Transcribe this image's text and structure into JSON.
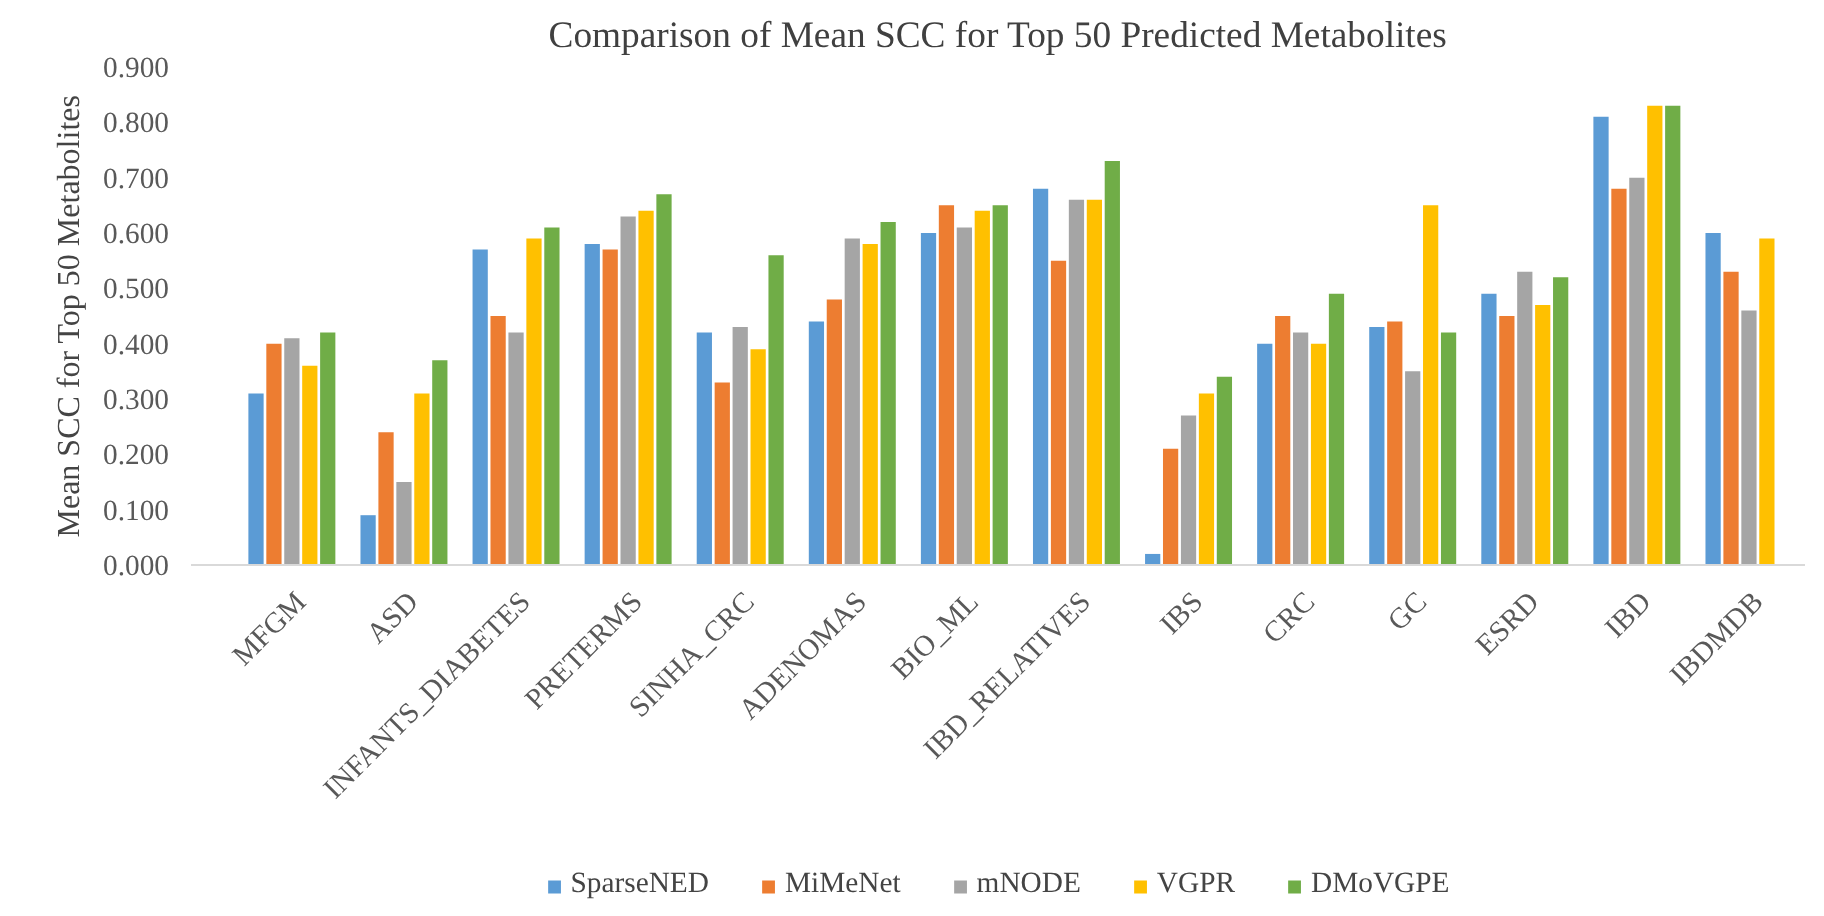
{
  "chart_data": {
    "type": "bar",
    "title": "Comparison of Mean SCC for Top 50 Predicted Metabolites",
    "ylabel": "Mean SCC for Top 50 Metabolites",
    "categories": [
      "MFGM",
      "ASD",
      "INFANTS_DIABETES",
      "PRETERMS",
      "SINHA_CRC",
      "ADENOMAS",
      "BIO_ML",
      "IBD_RELATIVES",
      "IBS",
      "CRC",
      "GC",
      "ESRD",
      "IBD",
      "IBDMDB"
    ],
    "series": [
      {
        "name": "SparseNED",
        "color": "#5b9bd5",
        "values": [
          0.31,
          0.09,
          0.57,
          0.58,
          0.42,
          0.44,
          0.6,
          0.68,
          0.02,
          0.4,
          0.43,
          0.49,
          0.81,
          0.6
        ]
      },
      {
        "name": "MiMeNet",
        "color": "#ed7d31",
        "values": [
          0.4,
          0.24,
          0.45,
          0.57,
          0.33,
          0.48,
          0.65,
          0.55,
          0.21,
          0.45,
          0.44,
          0.45,
          0.68,
          0.53
        ]
      },
      {
        "name": "mNODE",
        "color": "#a5a5a5",
        "values": [
          0.41,
          0.15,
          0.42,
          0.63,
          0.43,
          0.59,
          0.61,
          0.66,
          0.27,
          0.42,
          0.35,
          0.53,
          0.7,
          0.46
        ]
      },
      {
        "name": "VGPR",
        "color": "#ffc000",
        "values": [
          0.36,
          0.31,
          0.59,
          0.64,
          0.39,
          0.58,
          0.64,
          0.66,
          0.31,
          0.4,
          0.65,
          0.47,
          0.83,
          0.59
        ]
      },
      {
        "name": "DMoVGPE",
        "color": "#70ad47",
        "values": [
          0.42,
          0.37,
          0.61,
          0.67,
          0.56,
          0.62,
          0.65,
          0.73,
          0.34,
          0.49,
          0.42,
          0.52,
          0.83,
          null
        ]
      }
    ],
    "ylim": [
      0,
      0.9
    ],
    "yticks": [
      {
        "value": 0,
        "label": "0.000"
      },
      {
        "value": 0.1,
        "label": "0.100"
      },
      {
        "value": 0.2,
        "label": "0.200"
      },
      {
        "value": 0.3,
        "label": "0.300"
      },
      {
        "value": 0.4,
        "label": "0.400"
      },
      {
        "value": 0.5,
        "label": "0.500"
      },
      {
        "value": 0.6,
        "label": "0.600"
      },
      {
        "value": 0.7,
        "label": "0.700"
      },
      {
        "value": 0.8,
        "label": "0.800"
      },
      {
        "value": 0.9,
        "label": "0.900"
      }
    ],
    "grid": false,
    "legend": "bottom"
  }
}
